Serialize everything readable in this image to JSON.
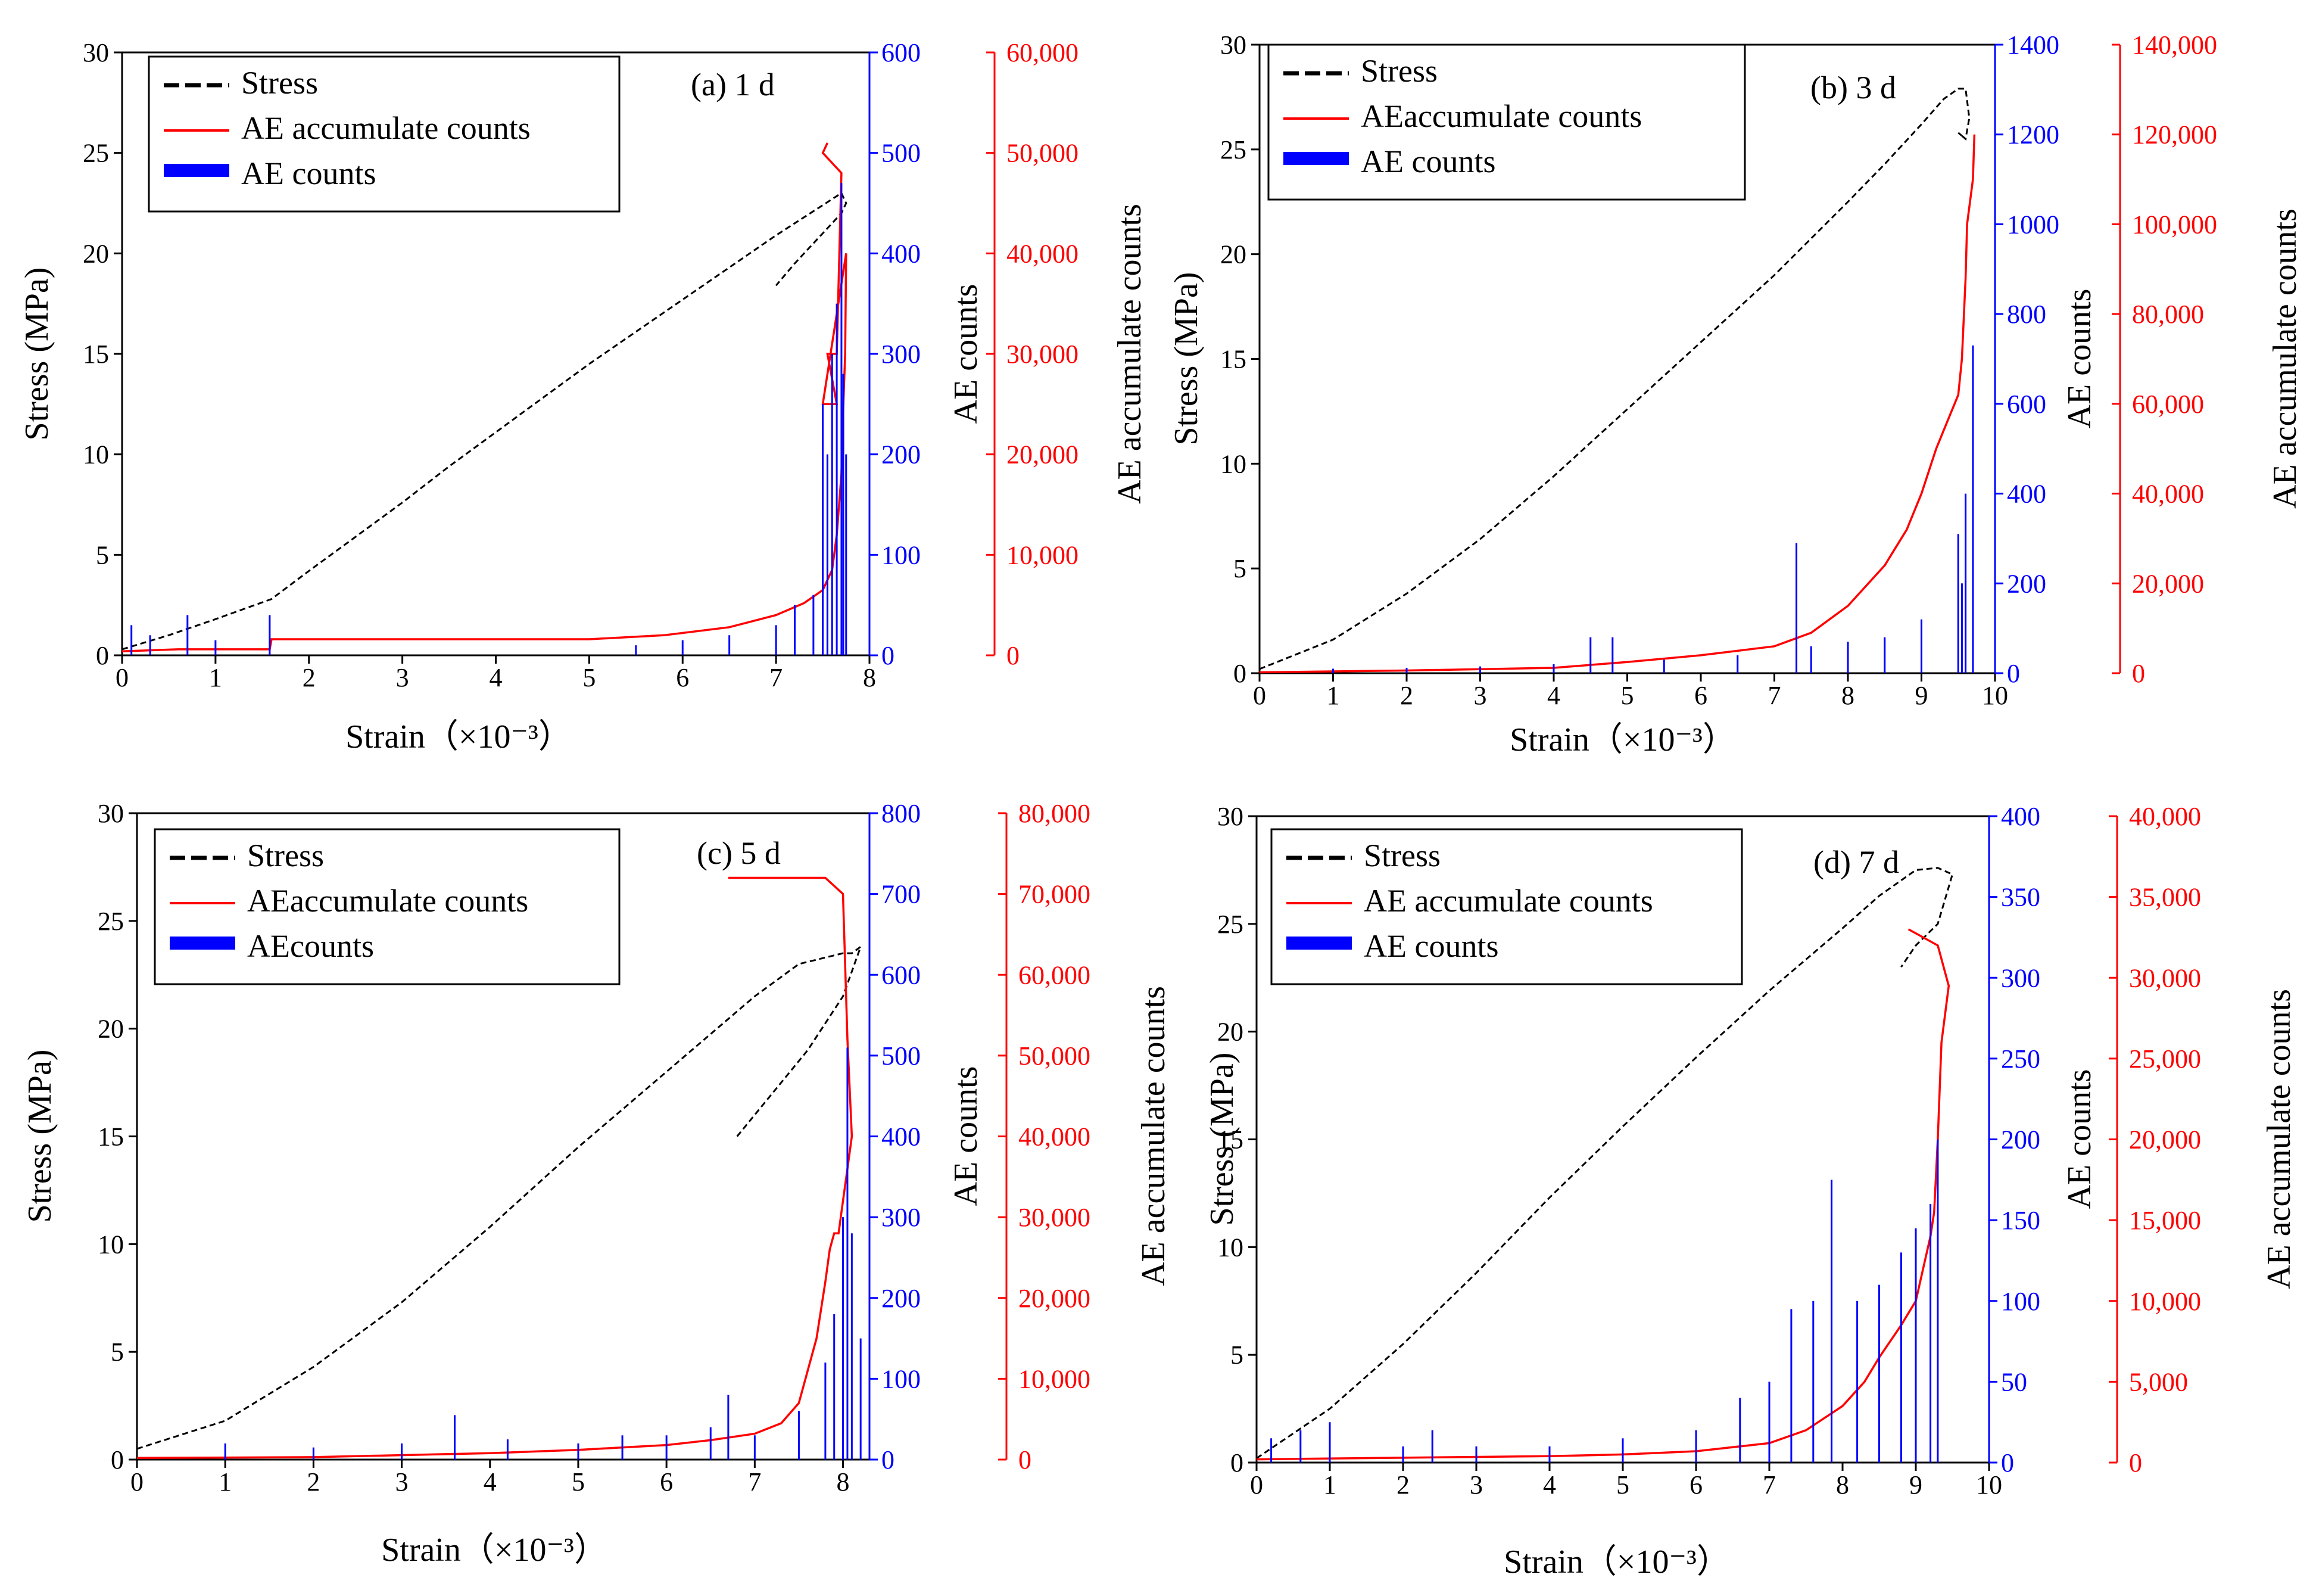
{
  "figure": {
    "strain_axis_label": "Strain（×10⁻³）",
    "stress_axis_label": "Stress (MPa)",
    "ae_counts_axis_label": "AE counts",
    "ae_accum_axis_label": "AE accumulate counts"
  },
  "colors": {
    "stress": "#000000",
    "ae_accum": "#ff0000",
    "ae_counts": "#0000ff"
  },
  "chart_data": [
    {
      "type": "line",
      "panel_label": "(a) 1 d",
      "xlabel": "Strain（×10⁻³）",
      "ylabel_left": "Stress (MPa)",
      "ylabel_right1": "AE counts",
      "ylabel_right2": "AE accumulate counts",
      "legend": [
        "Stress",
        "AE accumulate counts",
        "AE counts"
      ],
      "legend_position": "top-left",
      "xlim": [
        0,
        8
      ],
      "xticks": [
        0,
        1,
        2,
        3,
        4,
        5,
        6,
        7,
        8
      ],
      "xtick_labels": [
        "0",
        "1",
        "2",
        "3",
        "4",
        "5",
        "6",
        "7",
        "8"
      ],
      "ylim_stress": [
        0,
        30
      ],
      "yticks_stress": [
        0,
        5,
        10,
        15,
        20,
        25,
        30
      ],
      "ytick_labels_stress": [
        "0",
        "5",
        "10",
        "15",
        "20",
        "25",
        "30"
      ],
      "ylim_ae_counts": [
        0,
        600
      ],
      "yticks_ae_counts": [
        0,
        100,
        200,
        300,
        400,
        500,
        600
      ],
      "ytick_labels_ae_counts": [
        "0",
        "100",
        "200",
        "300",
        "400",
        "500",
        "600"
      ],
      "ylim_ae_accum": [
        0,
        60000
      ],
      "yticks_ae_accum": [
        0,
        10000,
        20000,
        30000,
        40000,
        50000,
        60000
      ],
      "ytick_labels_ae_accum": [
        "0",
        "10,000",
        "20,000",
        "30,000",
        "40,000",
        "50,000",
        "60,000"
      ],
      "series": [
        {
          "name": "Stress",
          "axis": "stress",
          "style": "dashed",
          "x": [
            0,
            0.5,
            1.0,
            1.6,
            2.0,
            2.5,
            3.0,
            3.5,
            4.0,
            4.5,
            5.0,
            5.5,
            6.0,
            6.5,
            7.0,
            7.5,
            7.7,
            7.75,
            7.7,
            7.5,
            7.2,
            7.0
          ],
          "y": [
            0.3,
            1.0,
            1.8,
            2.8,
            4.2,
            5.9,
            7.6,
            9.4,
            11.1,
            12.8,
            14.5,
            16.1,
            17.7,
            19.3,
            20.9,
            22.4,
            23.0,
            22.5,
            22.0,
            21.0,
            19.5,
            18.4
          ]
        },
        {
          "name": "AE accumulate counts",
          "axis": "ae_accum",
          "style": "solid",
          "x": [
            0,
            0.6,
            1.58,
            1.6,
            3.0,
            5.0,
            5.8,
            6.5,
            7.0,
            7.3,
            7.5,
            7.6,
            7.65,
            7.7,
            7.72,
            7.74,
            7.75,
            7.5,
            7.65,
            7.55,
            7.65,
            7.7,
            7.5,
            7.55
          ],
          "y": [
            400,
            600,
            600,
            1600,
            1600,
            1600,
            2000,
            2800,
            4000,
            5200,
            6500,
            8500,
            12000,
            18000,
            25000,
            30000,
            40000,
            25000,
            25000,
            30000,
            30000,
            48000,
            50000,
            51000
          ]
        },
        {
          "name": "AE counts",
          "axis": "ae_counts",
          "style": "bars",
          "x": [
            0.1,
            0.3,
            0.7,
            1.0,
            1.58,
            5.5,
            6.0,
            6.5,
            7.0,
            7.2,
            7.4,
            7.5,
            7.55,
            7.6,
            7.65,
            7.7,
            7.72,
            7.75
          ],
          "y": [
            30,
            20,
            40,
            15,
            40,
            10,
            15,
            20,
            30,
            50,
            60,
            250,
            200,
            300,
            350,
            470,
            280,
            200
          ]
        }
      ]
    },
    {
      "type": "line",
      "panel_label": "(b) 3 d",
      "xlabel": "Strain（×10⁻³）",
      "ylabel_left": "Stress (MPa)",
      "ylabel_right1": "AE counts",
      "ylabel_right2": "AE accumulate counts",
      "legend": [
        "Stress",
        "AEaccumulate counts",
        "AE  counts"
      ],
      "legend_position": "top-left",
      "xlim": [
        0,
        10
      ],
      "xticks": [
        0,
        1,
        2,
        3,
        4,
        5,
        6,
        7,
        8,
        9,
        10
      ],
      "xtick_labels": [
        "0",
        "1",
        "2",
        "3",
        "4",
        "5",
        "6",
        "7",
        "8",
        "9",
        "10"
      ],
      "ylim_stress": [
        0,
        30
      ],
      "yticks_stress": [
        0,
        5,
        10,
        15,
        20,
        25,
        30
      ],
      "ytick_labels_stress": [
        "0",
        "5",
        "10",
        "15",
        "20",
        "25",
        "30"
      ],
      "ylim_ae_counts": [
        0,
        1400
      ],
      "yticks_ae_counts": [
        0,
        200,
        400,
        600,
        800,
        1000,
        1200,
        1400
      ],
      "ytick_labels_ae_counts": [
        "0",
        "200",
        "400",
        "600",
        "800",
        "1000",
        "1200",
        "1400"
      ],
      "ylim_ae_accum": [
        0,
        140000
      ],
      "yticks_ae_accum": [
        0,
        20000,
        40000,
        60000,
        80000,
        100000,
        120000,
        140000
      ],
      "ytick_labels_ae_accum": [
        "0",
        "20,000",
        "40,000",
        "60,000",
        "80,000",
        "100,000",
        "120,000",
        "140,000"
      ],
      "series": [
        {
          "name": "Stress",
          "axis": "stress",
          "style": "dashed",
          "x": [
            0,
            1,
            2,
            3,
            4,
            5,
            6,
            7,
            8,
            8.5,
            9,
            9.3,
            9.5,
            9.6,
            9.65,
            9.6,
            9.5,
            9.6
          ],
          "y": [
            0.2,
            1.6,
            3.8,
            6.4,
            9.4,
            12.6,
            15.8,
            19.0,
            22.5,
            24.3,
            26.2,
            27.4,
            27.9,
            27.9,
            26.5,
            25.5,
            25.8,
            25.5
          ]
        },
        {
          "name": "AE accumulate counts",
          "axis": "ae_accum",
          "style": "solid",
          "x": [
            0,
            2,
            4,
            5,
            6,
            7,
            7.5,
            8,
            8.5,
            8.8,
            9.0,
            9.2,
            9.4,
            9.5,
            9.55,
            9.6,
            9.62,
            9.7,
            9.72
          ],
          "y": [
            200,
            600,
            1200,
            2500,
            4000,
            6000,
            9000,
            15000,
            24000,
            32000,
            40000,
            50000,
            58000,
            62000,
            70000,
            88000,
            100000,
            110000,
            120000
          ]
        },
        {
          "name": "AE counts",
          "axis": "ae_counts",
          "style": "bars",
          "x": [
            1,
            2,
            3,
            4,
            4.5,
            4.8,
            5.5,
            6.5,
            7.3,
            7.5,
            8.0,
            8.5,
            9.0,
            9.5,
            9.55,
            9.6,
            9.7
          ],
          "y": [
            10,
            12,
            15,
            20,
            80,
            80,
            30,
            40,
            290,
            60,
            70,
            80,
            120,
            310,
            200,
            400,
            730
          ]
        }
      ]
    },
    {
      "type": "line",
      "panel_label": "(c) 5 d",
      "xlabel": "Strain（×10⁻³）",
      "ylabel_left": "Stress (MPa)",
      "ylabel_right1": "AE counts",
      "ylabel_right2": "AE accumulate counts",
      "legend": [
        "Stress",
        "AEaccumulate counts",
        "AEcounts"
      ],
      "legend_position": "top-left",
      "xlim": [
        0,
        8.3
      ],
      "xticks": [
        0,
        1,
        2,
        3,
        4,
        5,
        6,
        7,
        8
      ],
      "xtick_labels": [
        "0",
        "1",
        "2",
        "3",
        "4",
        "5",
        "6",
        "7",
        "8"
      ],
      "ylim_stress": [
        0,
        30
      ],
      "yticks_stress": [
        0,
        5,
        10,
        15,
        20,
        25,
        30
      ],
      "ytick_labels_stress": [
        "0",
        "5",
        "10",
        "15",
        "20",
        "25",
        "30"
      ],
      "ylim_ae_counts": [
        0,
        800
      ],
      "yticks_ae_counts": [
        0,
        100,
        200,
        300,
        400,
        500,
        600,
        700,
        800
      ],
      "ytick_labels_ae_counts": [
        "0",
        "100",
        "200",
        "300",
        "400",
        "500",
        "600",
        "700",
        "800"
      ],
      "ylim_ae_accum": [
        0,
        80000
      ],
      "yticks_ae_accum": [
        0,
        10000,
        20000,
        30000,
        40000,
        50000,
        60000,
        70000,
        80000
      ],
      "ytick_labels_ae_accum": [
        "0",
        "10,000",
        "20,000",
        "30,000",
        "40,000",
        "50,000",
        "60,000",
        "70,000",
        "80,000"
      ],
      "series": [
        {
          "name": "Stress",
          "axis": "stress",
          "style": "dashed",
          "x": [
            0,
            1,
            2,
            3,
            4,
            5,
            6,
            7,
            7.5,
            7.8,
            8.0,
            8.1,
            8.2,
            8.0,
            7.6,
            7.2,
            6.8
          ],
          "y": [
            0.5,
            1.8,
            4.3,
            7.3,
            10.8,
            14.5,
            18.0,
            21.5,
            23.0,
            23.3,
            23.5,
            23.5,
            23.8,
            21.5,
            19.0,
            17.0,
            15.0
          ]
        },
        {
          "name": "AE accumulate counts",
          "axis": "ae_accum",
          "style": "solid",
          "x": [
            0,
            2,
            4,
            5,
            6,
            6.5,
            7.0,
            7.3,
            7.5,
            7.7,
            7.8,
            7.85,
            7.9,
            7.95,
            8.0,
            8.05,
            8.1,
            8.05,
            8.0,
            7.8,
            6.7
          ],
          "y": [
            200,
            300,
            800,
            1200,
            1800,
            2400,
            3200,
            4500,
            7000,
            15000,
            22000,
            26000,
            28000,
            28000,
            32000,
            36000,
            40000,
            52000,
            70000,
            72000,
            72000
          ]
        },
        {
          "name": "AE counts",
          "axis": "ae_counts",
          "style": "bars",
          "x": [
            1,
            2,
            3,
            3.6,
            4.2,
            5,
            5.5,
            6,
            6.5,
            6.7,
            7.0,
            7.5,
            7.8,
            7.9,
            8.0,
            8.05,
            8.1,
            8.2
          ],
          "y": [
            20,
            15,
            20,
            55,
            25,
            20,
            30,
            30,
            40,
            80,
            30,
            60,
            120,
            180,
            300,
            510,
            280,
            150
          ]
        }
      ]
    },
    {
      "type": "line",
      "panel_label": "(d) 7 d",
      "xlabel": "Strain（×10⁻³）",
      "ylabel_left": "Stress (MPa)",
      "ylabel_right1": "AE counts",
      "ylabel_right2": "AE accumulate counts",
      "legend": [
        "Stress",
        "AE accumulate counts",
        "AE counts"
      ],
      "legend_position": "top-left",
      "xlim": [
        0,
        10
      ],
      "xticks": [
        0,
        1,
        2,
        3,
        4,
        5,
        6,
        7,
        8,
        9,
        10
      ],
      "xtick_labels": [
        "0",
        "1",
        "2",
        "3",
        "4",
        "5",
        "6",
        "7",
        "8",
        "9",
        "10"
      ],
      "ylim_stress": [
        0,
        30
      ],
      "yticks_stress": [
        0,
        5,
        10,
        15,
        20,
        25,
        30
      ],
      "ytick_labels_stress": [
        "0",
        "5",
        "10",
        "15",
        "20",
        "25",
        "30"
      ],
      "ylim_ae_counts": [
        0,
        400
      ],
      "yticks_ae_counts": [
        0,
        50,
        100,
        150,
        200,
        250,
        300,
        350,
        400
      ],
      "ytick_labels_ae_counts": [
        "0",
        "50",
        "100",
        "150",
        "200",
        "250",
        "300",
        "350",
        "400"
      ],
      "ylim_ae_accum": [
        0,
        40000
      ],
      "yticks_ae_accum": [
        0,
        5000,
        10000,
        15000,
        20000,
        25000,
        30000,
        35000,
        40000
      ],
      "ytick_labels_ae_accum": [
        "0",
        "5,000",
        "10,000",
        "15,000",
        "20,000",
        "25,000",
        "30,000",
        "35,000",
        "40,000"
      ],
      "series": [
        {
          "name": "Stress",
          "axis": "stress",
          "style": "dashed",
          "x": [
            0,
            1,
            2,
            3,
            4,
            5,
            6,
            7,
            8,
            8.5,
            9,
            9.3,
            9.5,
            9.3,
            9.0,
            8.8
          ],
          "y": [
            0.2,
            2.5,
            5.5,
            8.8,
            12.3,
            15.6,
            18.8,
            21.9,
            24.8,
            26.3,
            27.5,
            27.6,
            27.3,
            25.0,
            24.0,
            23.0
          ]
        },
        {
          "name": "AE accumulate counts",
          "axis": "ae_accum",
          "style": "solid",
          "x": [
            0,
            2,
            4,
            5,
            6,
            7,
            7.5,
            8,
            8.3,
            8.5,
            8.8,
            9.0,
            9.1,
            9.2,
            9.25,
            9.3,
            9.35,
            9.45,
            9.3,
            8.9
          ],
          "y": [
            200,
            300,
            400,
            500,
            700,
            1200,
            2000,
            3500,
            5000,
            6500,
            8500,
            10000,
            12000,
            14000,
            15500,
            20000,
            26000,
            29500,
            32000,
            33000
          ]
        },
        {
          "name": "AE counts",
          "axis": "ae_counts",
          "style": "bars",
          "x": [
            0.2,
            0.6,
            1.0,
            2.0,
            2.4,
            3.0,
            4.0,
            5.0,
            6.0,
            6.6,
            7.0,
            7.3,
            7.6,
            7.85,
            8.2,
            8.5,
            8.8,
            9.0,
            9.2,
            9.3
          ],
          "y": [
            15,
            20,
            25,
            10,
            20,
            10,
            10,
            15,
            20,
            40,
            50,
            95,
            100,
            175,
            100,
            110,
            130,
            145,
            160,
            200
          ]
        }
      ]
    }
  ]
}
